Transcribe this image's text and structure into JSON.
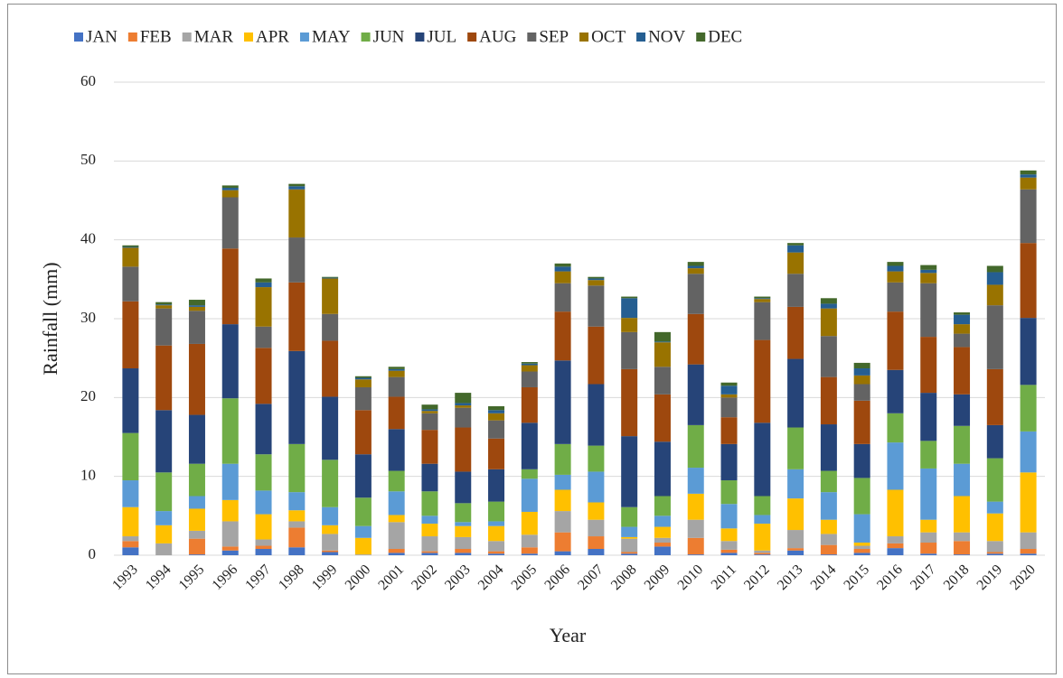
{
  "chart_data": {
    "type": "stacked_bar",
    "y_label": "Rainfall (mm)",
    "x_label": "Year",
    "categories": [
      "1993",
      "1994",
      "1995",
      "1996",
      "1997",
      "1998",
      "1999",
      "2000",
      "2001",
      "2002",
      "2003",
      "2004",
      "2005",
      "2006",
      "2007",
      "2008",
      "2009",
      "2010",
      "2011",
      "2012",
      "2013",
      "2014",
      "2015",
      "2016",
      "2017",
      "2018",
      "2019",
      "2020"
    ],
    "ylim": [
      0,
      60
    ],
    "yticks": [
      0,
      10,
      20,
      30,
      40,
      50,
      60
    ],
    "grid": true,
    "legend": "top",
    "series": [
      {
        "name": "JAN",
        "color": "#4472c4",
        "values": [
          1.0,
          0,
          0.1,
          0.6,
          0.8,
          1.0,
          0.4,
          0,
          0.3,
          0.3,
          0.3,
          0.2,
          0.2,
          0.5,
          0.8,
          0.2,
          1.1,
          0.1,
          0.3,
          0.1,
          0.6,
          0.1,
          0.3,
          0.9,
          0.2,
          0.1,
          0.2,
          0.2
        ]
      },
      {
        "name": "FEB",
        "color": "#ed7d31",
        "values": [
          0.8,
          0,
          2.0,
          0.5,
          0.4,
          2.5,
          0.2,
          0,
          0.5,
          0.2,
          0.5,
          0.3,
          0.8,
          2.4,
          1.6,
          0.2,
          0.5,
          2.1,
          0.4,
          0.2,
          0.3,
          1.2,
          0.5,
          0.6,
          1.4,
          1.7,
          0.2,
          0.6
        ]
      },
      {
        "name": "MAR",
        "color": "#a5a5a5",
        "values": [
          0.6,
          1.5,
          1.0,
          3.2,
          0.8,
          0.8,
          2.1,
          0.1,
          3.4,
          1.9,
          1.5,
          1.3,
          1.6,
          2.7,
          2.1,
          1.7,
          0.6,
          2.3,
          1.1,
          0.3,
          2.3,
          1.4,
          0.4,
          0.9,
          1.3,
          1.1,
          1.4,
          2.1
        ]
      },
      {
        "name": "APR",
        "color": "#ffc000",
        "values": [
          3.7,
          2.3,
          2.8,
          2.7,
          3.2,
          1.4,
          1.1,
          2.1,
          0.9,
          1.6,
          1.4,
          1.9,
          2.9,
          2.7,
          2.2,
          0.2,
          1.4,
          3.3,
          1.6,
          3.4,
          4.0,
          1.8,
          0.4,
          5.9,
          1.6,
          4.6,
          3.5,
          7.6
        ]
      },
      {
        "name": "MAY",
        "color": "#5b9bd5",
        "values": [
          3.4,
          1.8,
          1.6,
          4.6,
          3.0,
          2.3,
          2.3,
          1.5,
          3.0,
          1.0,
          0.5,
          0.6,
          4.2,
          1.9,
          3.9,
          1.3,
          1.4,
          3.3,
          3.1,
          1.1,
          3.7,
          3.5,
          3.6,
          6.0,
          6.5,
          4.1,
          1.5,
          5.2
        ]
      },
      {
        "name": "JUN",
        "color": "#70ad47",
        "values": [
          6.0,
          4.9,
          4.1,
          8.3,
          4.6,
          6.1,
          6.0,
          3.6,
          2.6,
          3.1,
          2.4,
          2.5,
          1.2,
          3.9,
          3.3,
          2.5,
          2.5,
          5.4,
          3.0,
          2.4,
          5.3,
          2.7,
          4.6,
          3.7,
          3.5,
          4.8,
          5.5,
          5.9
        ]
      },
      {
        "name": "JUL",
        "color": "#264478",
        "values": [
          8.2,
          7.9,
          6.2,
          9.4,
          6.4,
          11.8,
          8.0,
          5.5,
          5.3,
          3.5,
          4.0,
          4.1,
          5.9,
          10.6,
          7.8,
          9.0,
          6.9,
          7.7,
          4.6,
          9.3,
          8.7,
          5.9,
          4.3,
          5.5,
          6.1,
          4.0,
          4.2,
          8.5
        ]
      },
      {
        "name": "AUG",
        "color": "#9e480e",
        "values": [
          8.5,
          8.2,
          9.0,
          9.6,
          7.1,
          8.7,
          7.1,
          5.6,
          4.1,
          4.3,
          5.6,
          3.9,
          4.5,
          6.2,
          7.3,
          8.5,
          6.0,
          6.4,
          3.4,
          10.5,
          6.6,
          6.0,
          5.5,
          7.4,
          7.1,
          6.0,
          7.1,
          9.5
        ]
      },
      {
        "name": "SEP",
        "color": "#636363",
        "values": [
          4.4,
          4.7,
          4.2,
          6.5,
          2.7,
          5.7,
          3.4,
          2.9,
          2.5,
          2.1,
          2.5,
          2.3,
          2.0,
          3.6,
          5.2,
          4.7,
          3.5,
          5.1,
          2.5,
          4.8,
          4.2,
          5.2,
          2.1,
          3.7,
          6.8,
          1.7,
          8.1,
          6.8
        ]
      },
      {
        "name": "OCT",
        "color": "#997300",
        "values": [
          2.4,
          0.4,
          0.5,
          0.9,
          5.0,
          6.1,
          4.5,
          1.0,
          0.8,
          0.3,
          0.3,
          0.9,
          0.8,
          1.5,
          0.7,
          1.8,
          3.1,
          0.7,
          0.4,
          0.4,
          2.7,
          3.5,
          1.1,
          1.4,
          1.3,
          1.2,
          2.6,
          1.5
        ]
      },
      {
        "name": "NOV",
        "color": "#255e91",
        "values": [
          0.1,
          0.1,
          0.2,
          0.3,
          0.6,
          0.4,
          0.1,
          0.2,
          0.2,
          0.2,
          0.3,
          0.4,
          0.2,
          0.6,
          0.2,
          2.5,
          0.1,
          0.3,
          1.1,
          0.1,
          0.9,
          0.6,
          0.9,
          0.7,
          0.4,
          1.2,
          1.6,
          0.4
        ]
      },
      {
        "name": "DEC",
        "color": "#43682b",
        "values": [
          0.2,
          0.3,
          0.7,
          0.3,
          0.5,
          0.3,
          0.1,
          0.2,
          0.3,
          0.6,
          1.3,
          0.5,
          0.2,
          0.4,
          0.2,
          0.2,
          1.2,
          0.5,
          0.4,
          0.2,
          0.3,
          0.7,
          0.7,
          0.5,
          0.6,
          0.3,
          0.8,
          0.5
        ]
      }
    ]
  }
}
